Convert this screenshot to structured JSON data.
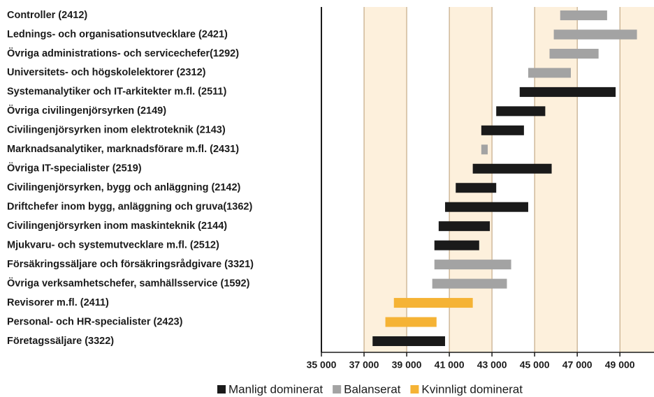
{
  "chart_data": {
    "type": "range",
    "categories": [
      "Controller (2412)",
      "Lednings- och organisationsutvecklare (2421)",
      "Övriga administrations- och servicechefer(1292)",
      "Universitets- och högskolelektorer (2312)",
      "Systemanalytiker och IT-arkitekter m.fl. (2511)",
      "Övriga civilingenjörsyrken (2149)",
      "Civilingenjörsyrken inom elektroteknik (2143)",
      "Marknadsanalytiker, marknadsförare m.fl. (2431)",
      "Övriga IT-specialister (2519)",
      "Civilingenjörsyrken, bygg och anläggning (2142)",
      "Driftchefer inom bygg, anläggning och gruva(1362)",
      "Civilingenjörsyrken inom maskinteknik (2144)",
      "Mjukvaru- och systemutvecklare m.fl. (2512)",
      "Försäkringssäljare och försäkringsrådgivare (3321)",
      "Övriga verksamhetschefer, samhällsservice (1592)",
      "Revisorer m.fl. (2411)",
      "Personal- och HR-specialister (2423)",
      "Företagssäljare (3322)"
    ],
    "series": [
      {
        "name": "Manligt dominerat",
        "color": "#1a1a1a",
        "values": [
          null,
          null,
          null,
          null,
          [
            44300,
            48800
          ],
          [
            43200,
            45500
          ],
          [
            42500,
            44500
          ],
          null,
          [
            42100,
            45800
          ],
          [
            41300,
            43200
          ],
          [
            40800,
            44700
          ],
          [
            40500,
            42900
          ],
          [
            40300,
            42400
          ],
          null,
          null,
          null,
          null,
          [
            37400,
            40800
          ]
        ]
      },
      {
        "name": "Balanserat",
        "color": "#a3a3a3",
        "values": [
          [
            46200,
            48400
          ],
          [
            45900,
            49800
          ],
          [
            45700,
            48000
          ],
          [
            44700,
            46700
          ],
          null,
          null,
          null,
          [
            42500,
            42800
          ],
          null,
          null,
          null,
          null,
          null,
          [
            40300,
            43900
          ],
          [
            40200,
            43700
          ],
          null,
          null,
          null
        ]
      },
      {
        "name": "Kvinnligt dominerat",
        "color": "#f5b335",
        "values": [
          null,
          null,
          null,
          null,
          null,
          null,
          null,
          null,
          null,
          null,
          null,
          null,
          null,
          null,
          null,
          [
            38400,
            42100
          ],
          [
            38000,
            40400
          ],
          null
        ]
      }
    ],
    "xlim": [
      35000,
      50600
    ],
    "xticks": [
      {
        "value": 35000,
        "label": "35 000"
      },
      {
        "value": 37000,
        "label": "37 000"
      },
      {
        "value": 39000,
        "label": "39 000"
      },
      {
        "value": 41000,
        "label": "41 000"
      },
      {
        "value": 43000,
        "label": "43 000"
      },
      {
        "value": 45000,
        "label": "45 000"
      },
      {
        "value": 47000,
        "label": "47 000"
      },
      {
        "value": 49000,
        "label": "49 000"
      }
    ],
    "band_color": "#fdf0dc"
  }
}
